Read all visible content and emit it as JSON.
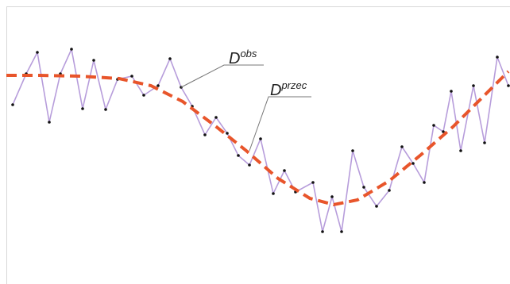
{
  "chart_data": {
    "type": "line",
    "xlim": [
      8,
      642
    ],
    "ylim": [
      0,
      347
    ],
    "series": [
      {
        "color": "#b79ddb",
        "marker_color": "#111",
        "x": [
          16,
          33,
          47,
          62,
          76,
          90,
          104,
          118,
          133,
          148,
          166,
          181,
          199,
          214,
          228,
          242,
          258,
          272,
          286,
          300,
          314,
          328,
          344,
          358,
          372,
          394,
          406,
          418,
          430,
          444,
          458,
          474,
          490,
          506,
          520,
          534,
          546,
          558,
          568,
          580,
          596,
          610,
          626,
          640
        ],
        "values": [
          223,
          262,
          289,
          201,
          262,
          293,
          218,
          279,
          217,
          255,
          259,
          235,
          247,
          281,
          245,
          221,
          185,
          207,
          187,
          159,
          147,
          180,
          111,
          140,
          113,
          125,
          63,
          107,
          63,
          165,
          119,
          95,
          115,
          170,
          149,
          125,
          197,
          189,
          240,
          165,
          247,
          175,
          283,
          247
        ]
      },
      {
        "color": "#e8552b",
        "dashed": true,
        "x": [
          8,
          50,
          100,
          150,
          190,
          230,
          270,
          310,
          350,
          390,
          420,
          450,
          490,
          530,
          570,
          610,
          640
        ],
        "values": [
          260,
          260,
          259,
          256,
          247,
          227,
          197,
          165,
          130,
          105,
          97,
          103,
          127,
          160,
          195,
          235,
          265
        ]
      }
    ],
    "annotations": [
      {
        "text": "D",
        "sup": "obs"
      },
      {
        "text": "D",
        "sup": "przec"
      }
    ]
  }
}
